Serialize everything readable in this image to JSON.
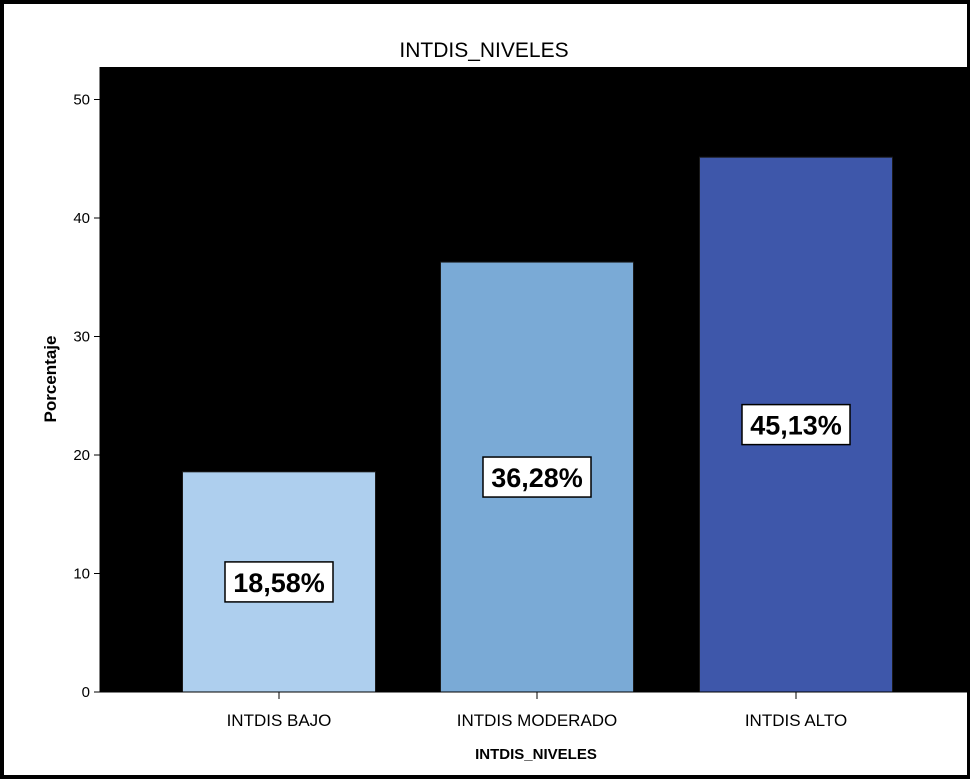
{
  "chart_data": {
    "type": "bar",
    "title": "INTDIS_NIVELES",
    "xlabel": "INTDIS_NIVELES",
    "ylabel": "Porcentaje",
    "categories": [
      "INTDIS BAJO",
      "INTDIS MODERADO",
      "INTDIS ALTO"
    ],
    "values": [
      18.58,
      36.28,
      45.13
    ],
    "data_labels": [
      "18,58%",
      "36,28%",
      "45,13%"
    ],
    "ylim": [
      0,
      52
    ],
    "yticks": [
      0,
      10,
      20,
      30,
      40,
      50
    ],
    "grid": false,
    "legend": "none",
    "colors": {
      "plot_background": "#000000",
      "bars": [
        "#aecfee",
        "#7aaad6",
        "#3e57aa"
      ]
    }
  }
}
